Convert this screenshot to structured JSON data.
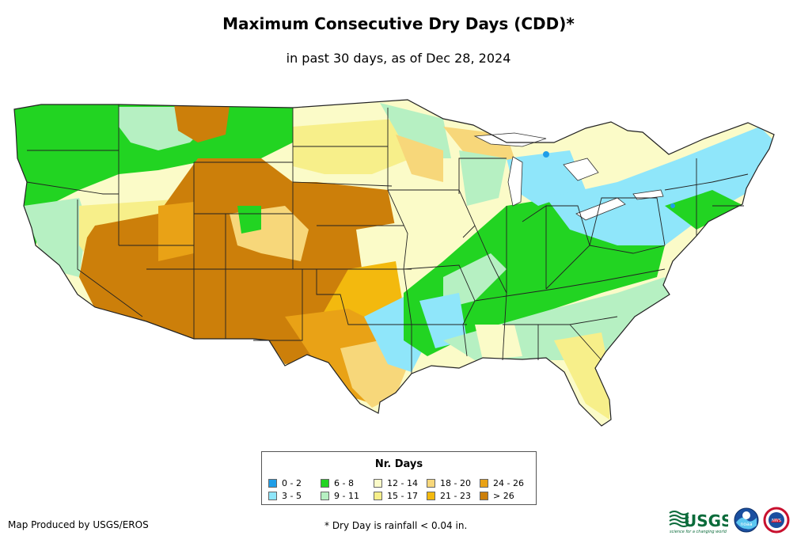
{
  "title": "Maximum Consecutive Dry Days (CDD)*",
  "subtitle": "in past 30 days, as of Dec 28, 2024",
  "legend": {
    "title": "Nr. Days",
    "items": [
      {
        "label": "0 - 2",
        "color": "#1f9ee8"
      },
      {
        "label": "3 - 5",
        "color": "#8fe6fa"
      },
      {
        "label": "6 - 8",
        "color": "#22d422"
      },
      {
        "label": "9 - 11",
        "color": "#b6f0c2"
      },
      {
        "label": "12 - 14",
        "color": "#fbfbc8"
      },
      {
        "label": "15 - 17",
        "color": "#f7ef8a"
      },
      {
        "label": "18 - 20",
        "color": "#f7d77a"
      },
      {
        "label": "21 - 23",
        "color": "#f3b90e"
      },
      {
        "label": "24 - 26",
        "color": "#e9a216"
      },
      {
        "label": "> 26",
        "color": "#cc7f0a"
      }
    ]
  },
  "footer": {
    "credit": "Map Produced by USGS/EROS",
    "note": "* Dry Day is rainfall < 0.04 in."
  },
  "logos": {
    "usgs": "USGS",
    "usgs_tagline": "science for a changing world",
    "noaa": "noaa",
    "nws": "NWS"
  }
}
